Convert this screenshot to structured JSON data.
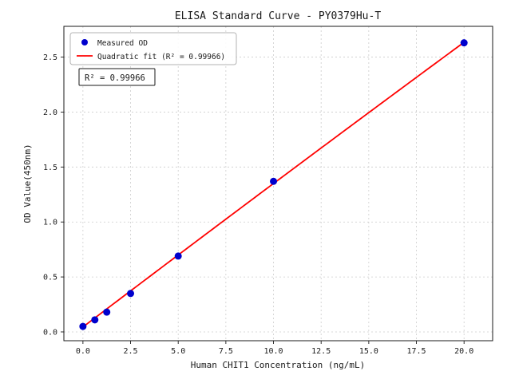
{
  "figure": {
    "background": "#ffffff"
  },
  "chart_data": {
    "type": "scatter",
    "title": "ELISA Standard Curve - PY0379Hu-T",
    "xlabel": "Human CHIT1 Concentration (ng/mL)",
    "ylabel": "OD Value(450nm)",
    "xlim": [
      -1.0,
      21.5
    ],
    "ylim": [
      -0.08,
      2.78
    ],
    "x_ticks": [
      0,
      2.5,
      5,
      7.5,
      10,
      12.5,
      15,
      17.5,
      20
    ],
    "x_tick_labels": [
      "0.0",
      "2.5",
      "5.0",
      "7.5",
      "10.0",
      "12.5",
      "15.0",
      "17.5",
      "20.0"
    ],
    "y_ticks": [
      0,
      0.5,
      1.0,
      1.5,
      2.0,
      2.5
    ],
    "y_tick_labels": [
      "0.0",
      "0.5",
      "1.0",
      "1.5",
      "2.0",
      "2.5"
    ],
    "grid": true,
    "grid_color": "#cccccc",
    "series": [
      {
        "name": "Measured OD",
        "type": "scatter",
        "color": "#0000cd",
        "x": [
          0,
          0.625,
          1.25,
          2.5,
          5,
          10,
          20
        ],
        "y": [
          0.05,
          0.11,
          0.18,
          0.35,
          0.69,
          1.37,
          2.63
        ]
      },
      {
        "name": "Quadratic fit (R² = 0.99966)",
        "type": "line",
        "color": "#ff0000",
        "fit_coeffs": [
          0.045,
          0.1315,
          -0.0001
        ],
        "x_range": [
          0,
          20
        ]
      }
    ],
    "legend_position": "upper-left",
    "annotation": "R² = 0.99966",
    "r_squared": 0.99966
  }
}
